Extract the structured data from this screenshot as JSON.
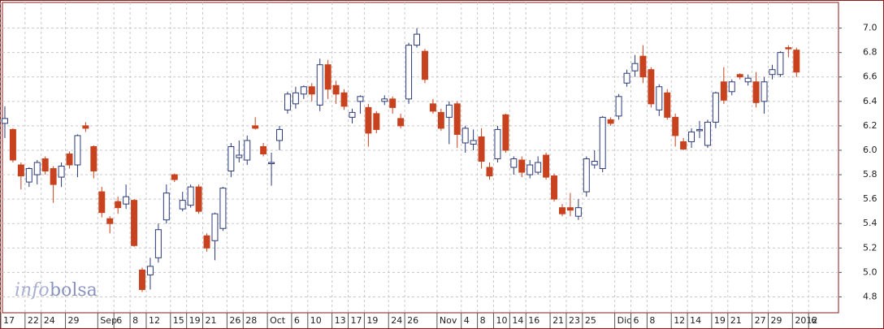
{
  "chart_data": {
    "type": "candlestick",
    "watermark": [
      "info",
      "bolsa"
    ],
    "up_color": "#ffffff",
    "up_edge": "#2b3a7a",
    "down_color": "#c8421f",
    "grid": true,
    "ylim": [
      4.67,
      7.21
    ],
    "yticks": [
      4.8,
      {
        "value": 5,
        "label": "5.0"
      },
      5.2,
      5.4,
      5.6,
      5.8,
      {
        "value": 6,
        "label": "6.0"
      },
      6.2,
      6.4,
      6.6,
      6.8,
      {
        "value": 7,
        "label": "7.0"
      }
    ],
    "xlim": [
      -0.3,
      103.2
    ],
    "xticks": [
      {
        "value": 0,
        "label": "17"
      },
      {
        "value": 3,
        "label": "22"
      },
      {
        "value": 5,
        "label": "24"
      },
      {
        "value": 8,
        "label": "29"
      },
      {
        "value": 12,
        "label": "Sep"
      },
      {
        "value": 14,
        "label": "6"
      },
      {
        "value": 16,
        "label": "8"
      },
      {
        "value": 18,
        "label": "12"
      },
      {
        "value": 21,
        "label": "15"
      },
      {
        "value": 23,
        "label": "19"
      },
      {
        "value": 25,
        "label": "21"
      },
      {
        "value": 28,
        "label": "26"
      },
      {
        "value": 30,
        "label": "28"
      },
      {
        "value": 33,
        "label": "Oct"
      },
      {
        "value": 36,
        "label": "6"
      },
      {
        "value": 38,
        "label": "10"
      },
      {
        "value": 41,
        "label": "13"
      },
      {
        "value": 43,
        "label": "17"
      },
      {
        "value": 45,
        "label": "19"
      },
      {
        "value": 48,
        "label": "24"
      },
      {
        "value": 50,
        "label": "26"
      },
      {
        "value": 54,
        "label": "Nov"
      },
      {
        "value": 57,
        "label": "4"
      },
      {
        "value": 59,
        "label": "8"
      },
      {
        "value": 61,
        "label": "10"
      },
      {
        "value": 63,
        "label": "14"
      },
      {
        "value": 65,
        "label": "16"
      },
      {
        "value": 68,
        "label": "21"
      },
      {
        "value": 70,
        "label": "23"
      },
      {
        "value": 72,
        "label": "25"
      },
      {
        "value": 76,
        "label": "Dic"
      },
      {
        "value": 78,
        "label": "6"
      },
      {
        "value": 80,
        "label": "8"
      },
      {
        "value": 83,
        "label": "12"
      },
      {
        "value": 85,
        "label": "14"
      },
      {
        "value": 88,
        "label": "19"
      },
      {
        "value": 90,
        "label": "21"
      },
      {
        "value": 93,
        "label": "27"
      },
      {
        "value": 95,
        "label": "29"
      },
      {
        "value": 98,
        "label": "2012"
      },
      {
        "value": 100,
        "label": "6"
      }
    ],
    "candles": [
      [
        6.22,
        6.36,
        6.1,
        6.26
      ],
      [
        6.17,
        6.18,
        5.9,
        5.92
      ],
      [
        5.88,
        5.9,
        5.68,
        5.79
      ],
      [
        5.74,
        5.86,
        5.7,
        5.85
      ],
      [
        5.8,
        5.92,
        5.72,
        5.9
      ],
      [
        5.93,
        5.95,
        5.8,
        5.83
      ],
      [
        5.85,
        5.87,
        5.57,
        5.72
      ],
      [
        5.78,
        5.9,
        5.7,
        5.87
      ],
      [
        5.97,
        5.99,
        5.85,
        5.88
      ],
      [
        5.88,
        6.13,
        5.78,
        6.12
      ],
      [
        6.2,
        6.23,
        6.15,
        6.18
      ],
      [
        6.03,
        6.04,
        5.77,
        5.83
      ],
      [
        5.66,
        5.7,
        5.45,
        5.49
      ],
      [
        5.44,
        5.46,
        5.32,
        5.4
      ],
      [
        5.58,
        5.62,
        5.48,
        5.53
      ],
      [
        5.56,
        5.72,
        5.52,
        5.62
      ],
      [
        5.59,
        5.6,
        5.21,
        5.22
      ],
      [
        5.02,
        5.04,
        4.84,
        4.86
      ],
      [
        4.98,
        5.12,
        4.86,
        5.05
      ],
      [
        5.12,
        5.4,
        5.08,
        5.35
      ],
      [
        5.43,
        5.72,
        5.4,
        5.65
      ],
      [
        5.8,
        5.81,
        5.74,
        5.76
      ],
      [
        5.52,
        5.66,
        5.5,
        5.59
      ],
      [
        5.55,
        5.72,
        5.53,
        5.7
      ],
      [
        5.7,
        5.72,
        5.48,
        5.5
      ],
      [
        5.3,
        5.32,
        5.17,
        5.2
      ],
      [
        5.26,
        5.49,
        5.1,
        5.48
      ],
      [
        5.36,
        5.7,
        5.34,
        5.69
      ],
      [
        5.83,
        6.06,
        5.78,
        6.03
      ],
      [
        5.94,
        6.08,
        5.9,
        5.96
      ],
      [
        5.92,
        6.12,
        5.88,
        6.08
      ],
      [
        6.2,
        6.27,
        6.17,
        6.18
      ],
      [
        6.03,
        6.06,
        5.95,
        5.97
      ],
      [
        5.89,
        5.98,
        5.71,
        5.9
      ],
      [
        6.08,
        6.2,
        6.0,
        6.17
      ],
      [
        6.33,
        6.48,
        6.3,
        6.46
      ],
      [
        6.38,
        6.52,
        6.34,
        6.47
      ],
      [
        6.46,
        6.53,
        6.42,
        6.52
      ],
      [
        6.52,
        6.55,
        6.4,
        6.46
      ],
      [
        6.37,
        6.75,
        6.32,
        6.7
      ],
      [
        6.7,
        6.74,
        6.42,
        6.5
      ],
      [
        6.53,
        6.57,
        6.38,
        6.46
      ],
      [
        6.47,
        6.5,
        6.33,
        6.36
      ],
      [
        6.27,
        6.34,
        6.22,
        6.31
      ],
      [
        6.4,
        6.45,
        6.3,
        6.44
      ],
      [
        6.35,
        6.38,
        6.03,
        6.14
      ],
      [
        6.3,
        6.32,
        6.14,
        6.17
      ],
      [
        6.4,
        6.45,
        6.37,
        6.42
      ],
      [
        6.42,
        6.44,
        6.3,
        6.35
      ],
      [
        6.26,
        6.3,
        6.18,
        6.2
      ],
      [
        6.42,
        6.88,
        6.38,
        6.86
      ],
      [
        6.86,
        7.0,
        6.84,
        6.95
      ],
      [
        6.81,
        6.83,
        6.55,
        6.58
      ],
      [
        6.38,
        6.42,
        6.3,
        6.32
      ],
      [
        6.31,
        6.34,
        6.16,
        6.18
      ],
      [
        6.27,
        6.4,
        6.05,
        6.37
      ],
      [
        6.38,
        6.4,
        6.02,
        6.13
      ],
      [
        6.06,
        6.2,
        5.98,
        6.18
      ],
      [
        6.05,
        6.17,
        6.0,
        6.08
      ],
      [
        6.11,
        6.18,
        5.85,
        5.91
      ],
      [
        5.86,
        5.9,
        5.76,
        5.79
      ],
      [
        5.93,
        6.2,
        5.9,
        6.17
      ],
      [
        6.29,
        6.3,
        5.98,
        6.0
      ],
      [
        5.86,
        5.95,
        5.8,
        5.93
      ],
      [
        5.92,
        5.95,
        5.78,
        5.82
      ],
      [
        5.8,
        5.92,
        5.77,
        5.88
      ],
      [
        5.82,
        5.95,
        5.8,
        5.9
      ],
      [
        5.96,
        5.98,
        5.76,
        5.78
      ],
      [
        5.79,
        5.81,
        5.58,
        5.6
      ],
      [
        5.53,
        5.56,
        5.46,
        5.48
      ],
      [
        5.53,
        5.65,
        5.46,
        5.51
      ],
      [
        5.46,
        5.6,
        5.43,
        5.53
      ],
      [
        5.66,
        5.95,
        5.62,
        5.93
      ],
      [
        5.88,
        6.0,
        5.85,
        5.91
      ],
      [
        5.85,
        6.28,
        5.82,
        6.27
      ],
      [
        6.25,
        6.27,
        6.2,
        6.22
      ],
      [
        6.28,
        6.46,
        6.25,
        6.44
      ],
      [
        6.55,
        6.66,
        6.52,
        6.63
      ],
      [
        6.65,
        6.78,
        6.6,
        6.71
      ],
      [
        6.77,
        6.86,
        6.55,
        6.6
      ],
      [
        6.66,
        6.68,
        6.35,
        6.38
      ],
      [
        6.33,
        6.54,
        6.28,
        6.52
      ],
      [
        6.47,
        6.5,
        6.25,
        6.27
      ],
      [
        6.27,
        6.3,
        6.03,
        6.12
      ],
      [
        6.07,
        6.1,
        6.0,
        6.01
      ],
      [
        6.07,
        6.18,
        6.02,
        6.15
      ],
      [
        6.16,
        6.24,
        6.1,
        6.17
      ],
      [
        6.04,
        6.25,
        6.02,
        6.23
      ],
      [
        6.23,
        6.48,
        6.18,
        6.47
      ],
      [
        6.56,
        6.68,
        6.38,
        6.41
      ],
      [
        6.48,
        6.58,
        6.45,
        6.56
      ],
      [
        6.62,
        6.63,
        6.58,
        6.6
      ],
      [
        6.56,
        6.62,
        6.53,
        6.59
      ],
      [
        6.56,
        6.64,
        6.35,
        6.39
      ],
      [
        6.4,
        6.6,
        6.3,
        6.56
      ],
      [
        6.62,
        6.7,
        6.58,
        6.66
      ],
      [
        6.62,
        6.81,
        6.6,
        6.8
      ],
      [
        6.84,
        6.86,
        6.76,
        6.83
      ],
      [
        6.82,
        6.84,
        6.6,
        6.64
      ]
    ]
  }
}
